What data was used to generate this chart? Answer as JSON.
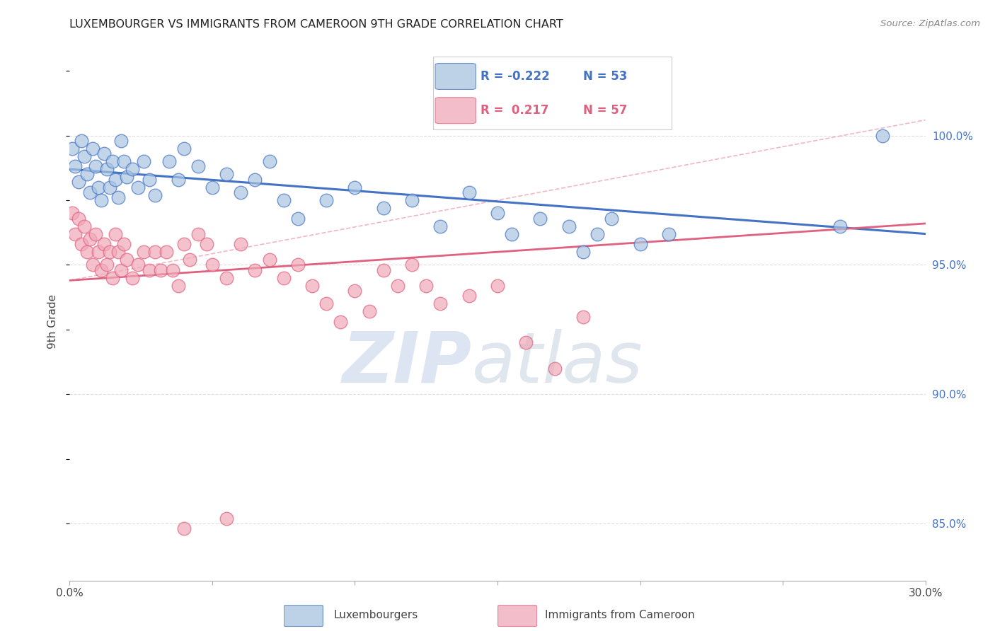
{
  "title": "LUXEMBOURGER VS IMMIGRANTS FROM CAMEROON 9TH GRADE CORRELATION CHART",
  "source": "Source: ZipAtlas.com",
  "ylabel": "9th Grade",
  "ytick_values": [
    0.85,
    0.9,
    0.95,
    1.0
  ],
  "xmin": 0.0,
  "xmax": 0.3,
  "ymin": 0.828,
  "ymax": 1.028,
  "legend_blue_r": "-0.222",
  "legend_blue_n": "53",
  "legend_pink_r": "0.217",
  "legend_pink_n": "57",
  "blue_color": "#a8c4e0",
  "pink_color": "#f0a8b8",
  "blue_edge_color": "#4472c4",
  "pink_edge_color": "#e06080",
  "blue_line_color": "#4472c4",
  "pink_line_color": "#e06080",
  "blue_scatter": [
    [
      0.001,
      0.995
    ],
    [
      0.002,
      0.988
    ],
    [
      0.003,
      0.982
    ],
    [
      0.004,
      0.998
    ],
    [
      0.005,
      0.992
    ],
    [
      0.006,
      0.985
    ],
    [
      0.007,
      0.978
    ],
    [
      0.008,
      0.995
    ],
    [
      0.009,
      0.988
    ],
    [
      0.01,
      0.98
    ],
    [
      0.011,
      0.975
    ],
    [
      0.012,
      0.993
    ],
    [
      0.013,
      0.987
    ],
    [
      0.014,
      0.98
    ],
    [
      0.015,
      0.99
    ],
    [
      0.016,
      0.983
    ],
    [
      0.017,
      0.976
    ],
    [
      0.018,
      0.998
    ],
    [
      0.019,
      0.99
    ],
    [
      0.02,
      0.984
    ],
    [
      0.022,
      0.987
    ],
    [
      0.024,
      0.98
    ],
    [
      0.026,
      0.99
    ],
    [
      0.028,
      0.983
    ],
    [
      0.03,
      0.977
    ],
    [
      0.035,
      0.99
    ],
    [
      0.038,
      0.983
    ],
    [
      0.04,
      0.995
    ],
    [
      0.045,
      0.988
    ],
    [
      0.05,
      0.98
    ],
    [
      0.055,
      0.985
    ],
    [
      0.06,
      0.978
    ],
    [
      0.065,
      0.983
    ],
    [
      0.07,
      0.99
    ],
    [
      0.075,
      0.975
    ],
    [
      0.08,
      0.968
    ],
    [
      0.09,
      0.975
    ],
    [
      0.1,
      0.98
    ],
    [
      0.11,
      0.972
    ],
    [
      0.12,
      0.975
    ],
    [
      0.13,
      0.965
    ],
    [
      0.14,
      0.978
    ],
    [
      0.15,
      0.97
    ],
    [
      0.155,
      0.962
    ],
    [
      0.165,
      0.968
    ],
    [
      0.175,
      0.965
    ],
    [
      0.18,
      0.955
    ],
    [
      0.185,
      0.962
    ],
    [
      0.19,
      0.968
    ],
    [
      0.2,
      0.958
    ],
    [
      0.21,
      0.962
    ],
    [
      0.27,
      0.965
    ],
    [
      0.285,
      1.0
    ]
  ],
  "pink_scatter": [
    [
      0.001,
      0.97
    ],
    [
      0.002,
      0.962
    ],
    [
      0.003,
      0.968
    ],
    [
      0.004,
      0.958
    ],
    [
      0.005,
      0.965
    ],
    [
      0.006,
      0.955
    ],
    [
      0.007,
      0.96
    ],
    [
      0.008,
      0.95
    ],
    [
      0.009,
      0.962
    ],
    [
      0.01,
      0.955
    ],
    [
      0.011,
      0.948
    ],
    [
      0.012,
      0.958
    ],
    [
      0.013,
      0.95
    ],
    [
      0.014,
      0.955
    ],
    [
      0.015,
      0.945
    ],
    [
      0.016,
      0.962
    ],
    [
      0.017,
      0.955
    ],
    [
      0.018,
      0.948
    ],
    [
      0.019,
      0.958
    ],
    [
      0.02,
      0.952
    ],
    [
      0.022,
      0.945
    ],
    [
      0.024,
      0.95
    ],
    [
      0.026,
      0.955
    ],
    [
      0.028,
      0.948
    ],
    [
      0.03,
      0.955
    ],
    [
      0.032,
      0.948
    ],
    [
      0.034,
      0.955
    ],
    [
      0.036,
      0.948
    ],
    [
      0.038,
      0.942
    ],
    [
      0.04,
      0.958
    ],
    [
      0.042,
      0.952
    ],
    [
      0.045,
      0.962
    ],
    [
      0.048,
      0.958
    ],
    [
      0.05,
      0.95
    ],
    [
      0.055,
      0.945
    ],
    [
      0.06,
      0.958
    ],
    [
      0.065,
      0.948
    ],
    [
      0.07,
      0.952
    ],
    [
      0.075,
      0.945
    ],
    [
      0.08,
      0.95
    ],
    [
      0.085,
      0.942
    ],
    [
      0.09,
      0.935
    ],
    [
      0.095,
      0.928
    ],
    [
      0.1,
      0.94
    ],
    [
      0.105,
      0.932
    ],
    [
      0.11,
      0.948
    ],
    [
      0.115,
      0.942
    ],
    [
      0.12,
      0.95
    ],
    [
      0.125,
      0.942
    ],
    [
      0.13,
      0.935
    ],
    [
      0.14,
      0.938
    ],
    [
      0.15,
      0.942
    ],
    [
      0.16,
      0.92
    ],
    [
      0.17,
      0.91
    ],
    [
      0.18,
      0.93
    ],
    [
      0.04,
      0.848
    ],
    [
      0.055,
      0.852
    ]
  ],
  "blue_trend": [
    0.0,
    0.3,
    0.987,
    0.962
  ],
  "pink_trend": [
    0.0,
    0.3,
    0.944,
    0.966
  ],
  "pink_dashed": [
    0.0,
    0.3,
    0.944,
    1.006
  ],
  "watermark_zip_color": "#c5d5e8",
  "watermark_atlas_color": "#b8c8d8",
  "background_color": "#ffffff",
  "grid_color": "#dddddd",
  "right_axis_color": "#4472c4",
  "bottom_legend": [
    "Luxembourgers",
    "Immigrants from Cameroon"
  ]
}
